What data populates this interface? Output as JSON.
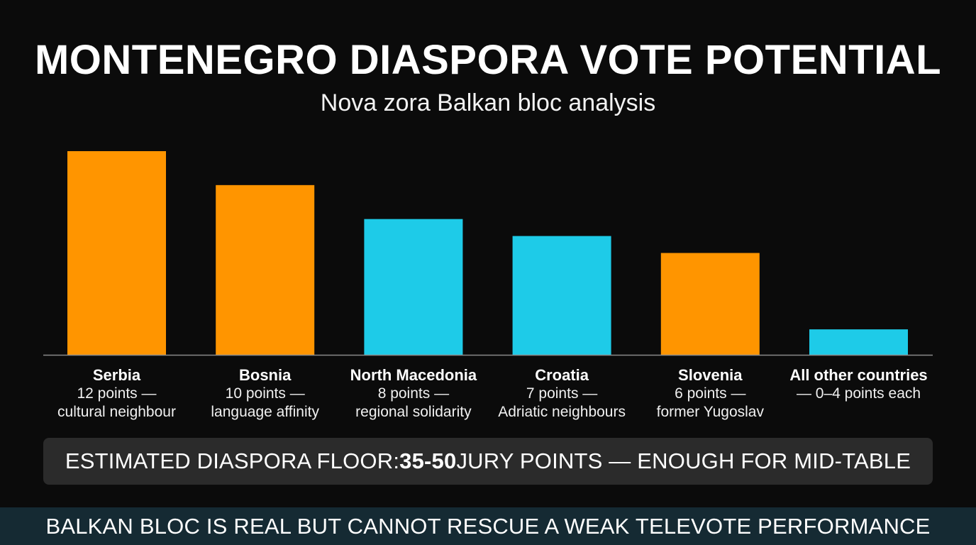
{
  "title": "MONTENEGRO DIASPORA VOTE POTENTIAL",
  "subtitle": "Nova zora Balkan bloc analysis",
  "chart_data": {
    "type": "bar",
    "categories": [
      "Serbia",
      "Bosnia",
      "North Macedonia",
      "Croatia",
      "Slovenia",
      "All other countries"
    ],
    "values": [
      12,
      10,
      8,
      7,
      6,
      1.5
    ],
    "descriptions": [
      [
        "12 points —",
        "cultural neighbour"
      ],
      [
        "10 points —",
        "language affinity"
      ],
      [
        "8 points —",
        "regional solidarity"
      ],
      [
        "7 points —",
        "Adriatic neighbours"
      ],
      [
        "6 points —",
        "former Yugoslav"
      ],
      [
        "— 0–4 points each",
        ""
      ]
    ],
    "bar_colors": [
      "#ff9500",
      "#ff9500",
      "#1ecbe8",
      "#1ecbe8",
      "#ff9500",
      "#1ecbe8"
    ],
    "ylim": [
      0,
      12
    ],
    "grid": false,
    "legend": "none"
  },
  "floor": {
    "prefix": "ESTIMATED DIASPORA FLOOR: ",
    "highlight": "35-50",
    "suffix": " JURY POINTS — ENOUGH FOR MID-TABLE"
  },
  "footer": "BALKAN BLOC IS REAL BUT CANNOT RESCUE A WEAK TELEVOTE PERFORMANCE",
  "colors": {
    "background": "#0b0b0b",
    "orange": "#ff9500",
    "cyan": "#1ecbe8",
    "floor_box": "#2b2b2b",
    "footer_bar": "#152a33"
  }
}
